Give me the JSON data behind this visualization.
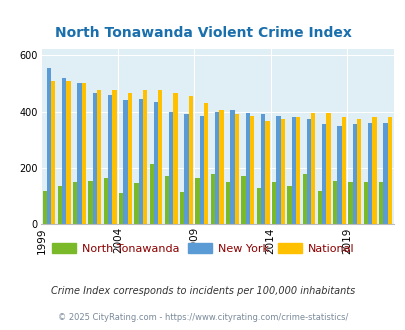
{
  "title": "North Tonawanda Violent Crime Index",
  "years": [
    1999,
    2000,
    2001,
    2002,
    2003,
    2004,
    2005,
    2006,
    2007,
    2008,
    2009,
    2010,
    2011,
    2012,
    2013,
    2014,
    2015,
    2016,
    2017,
    2018,
    2019,
    2020,
    2021
  ],
  "north_tonawanda": [
    120,
    135,
    150,
    155,
    165,
    110,
    145,
    215,
    170,
    115,
    165,
    180,
    150,
    170,
    130,
    150,
    135,
    180,
    120,
    155,
    150,
    150,
    150
  ],
  "new_york": [
    555,
    520,
    500,
    465,
    460,
    440,
    445,
    435,
    400,
    390,
    385,
    400,
    405,
    395,
    390,
    385,
    380,
    375,
    355,
    350,
    355,
    360,
    360
  ],
  "national": [
    510,
    510,
    500,
    475,
    475,
    465,
    475,
    475,
    465,
    455,
    430,
    405,
    390,
    385,
    365,
    375,
    380,
    395,
    395,
    380,
    375,
    380,
    380
  ],
  "nt_color": "#7aba2a",
  "ny_color": "#5b9bd5",
  "nat_color": "#ffc000",
  "bg_color": "#e0eff5",
  "ylim": [
    0,
    620
  ],
  "yticks": [
    0,
    200,
    400,
    600
  ],
  "tick_years": [
    1999,
    2004,
    2009,
    2014,
    2019
  ],
  "legend_labels": [
    "North Tonawanda",
    "New York",
    "National"
  ],
  "footnote1": "Crime Index corresponds to incidents per 100,000 inhabitants",
  "footnote2": "© 2025 CityRating.com - https://www.cityrating.com/crime-statistics/",
  "title_color": "#1a6fad",
  "legend_label_color": "#8b0000",
  "footnote1_color": "#333333",
  "footnote2_color": "#7a8a9a"
}
